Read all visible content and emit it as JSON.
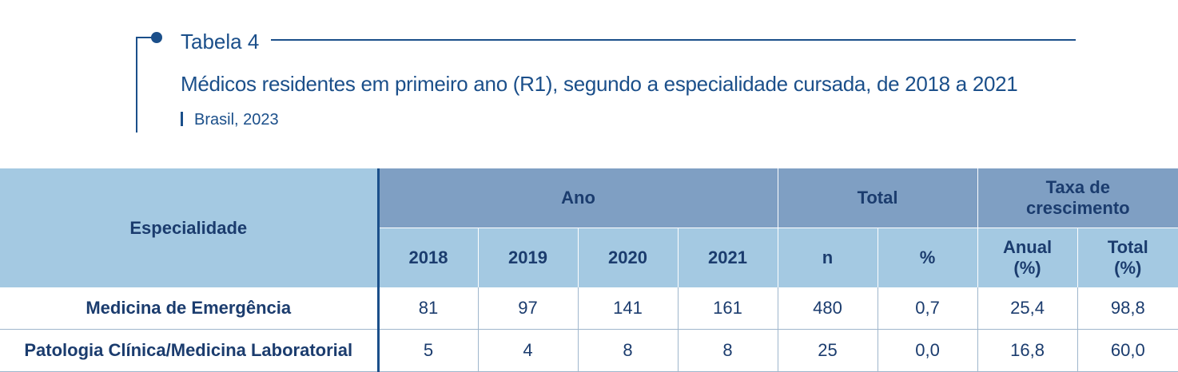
{
  "header": {
    "table_number": "Tabela 4",
    "title": "Médicos residentes em primeiro ano (R1), segundo a especialidade cursada, de 2018 a 2021",
    "subtitle": "Brasil, 2023"
  },
  "table": {
    "col_especialidade": "Especialidade",
    "group_ano": "Ano",
    "group_total": "Total",
    "group_taxa": "Taxa de crescimento",
    "years": [
      "2018",
      "2019",
      "2020",
      "2021"
    ],
    "total_cols": [
      "n",
      "%"
    ],
    "taxa_cols": [
      "Anual (%)",
      "Total (%)"
    ],
    "rows": [
      {
        "especialidade": "Medicina de Emergência",
        "values": [
          "81",
          "97",
          "141",
          "161",
          "480",
          "0,7",
          "25,4",
          "98,8"
        ]
      },
      {
        "especialidade": "Patologia Clínica/Medicina Laboratorial",
        "values": [
          "5",
          "4",
          "8",
          "8",
          "25",
          "0,0",
          "16,8",
          "60,0"
        ]
      }
    ]
  }
}
